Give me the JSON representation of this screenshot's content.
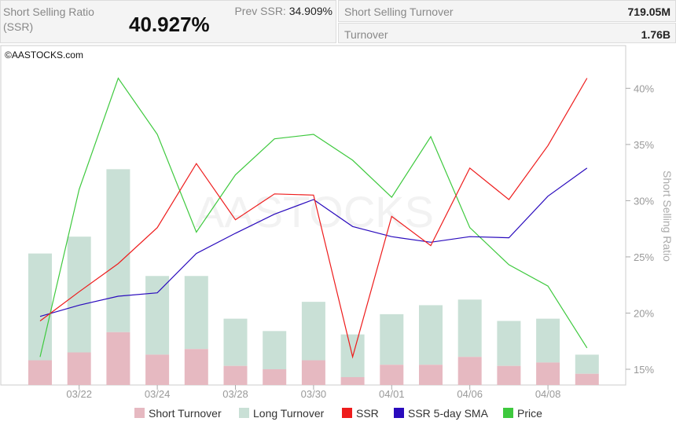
{
  "header": {
    "ssr_label": "Short Selling Ratio (SSR)",
    "ssr_value": "40.927%",
    "prev_label": "Prev SSR:",
    "prev_value": "34.909%",
    "turnover_label": "Short Selling Turnover",
    "turnover_value": "719.05M",
    "long_label": "Turnover",
    "long_value": "1.76B"
  },
  "copyright": "©AASTOCKS.com",
  "watermark": "AASTOCKS",
  "colors": {
    "short_turnover": "#e6b9c1",
    "long_turnover": "#c9e0d6",
    "ssr": "#ee1c1c",
    "sma": "#2a0bbd",
    "price": "#3ec93e"
  },
  "chart_data": {
    "type": "bar+line",
    "ylabel": "Short Selling Ratio",
    "y_ticks": [
      "40%",
      "35%",
      "30%",
      "25%",
      "20%",
      "15%"
    ],
    "y_tick_values": [
      40,
      35,
      30,
      25,
      20,
      15
    ],
    "ylim": [
      13.6,
      43.8
    ],
    "x_tick_labels": [
      "03/22",
      "03/24",
      "03/28",
      "03/30",
      "04/01",
      "04/06",
      "04/08"
    ],
    "x_tick_indices": [
      1,
      3,
      5,
      7,
      9,
      11,
      13
    ],
    "num_points": 15,
    "legend": [
      {
        "name": "Short Turnover",
        "color_key": "short_turnover"
      },
      {
        "name": "Long Turnover",
        "color_key": "long_turnover"
      },
      {
        "name": "SSR",
        "color_key": "ssr"
      },
      {
        "name": "SSR 5-day SMA",
        "color_key": "sma"
      },
      {
        "name": "Price",
        "color_key": "price"
      }
    ],
    "legend_position": "bottom",
    "bar_total": [
      25.3,
      26.8,
      32.8,
      23.3,
      23.3,
      19.5,
      18.4,
      21.0,
      18.1,
      19.9,
      20.7,
      21.2,
      19.3,
      19.5,
      16.3
    ],
    "bar_short": [
      15.8,
      16.5,
      18.3,
      16.3,
      16.8,
      15.3,
      15.0,
      15.8,
      14.3,
      15.4,
      15.4,
      16.1,
      15.3,
      15.6,
      14.6
    ],
    "ssr": [
      19.3,
      21.9,
      24.4,
      27.6,
      33.3,
      28.3,
      30.6,
      30.5,
      16.1,
      28.6,
      26.0,
      32.9,
      30.1,
      34.9,
      40.9
    ],
    "sma": [
      19.7,
      20.7,
      21.5,
      21.8,
      25.3,
      27.1,
      28.8,
      30.1,
      27.7,
      26.8,
      26.3,
      26.8,
      26.7,
      30.4,
      32.9
    ],
    "price": [
      16.1,
      31.0,
      40.9,
      35.9,
      27.2,
      32.3,
      35.5,
      35.9,
      33.6,
      30.3,
      35.7,
      27.6,
      24.3,
      22.4,
      16.9
    ]
  }
}
